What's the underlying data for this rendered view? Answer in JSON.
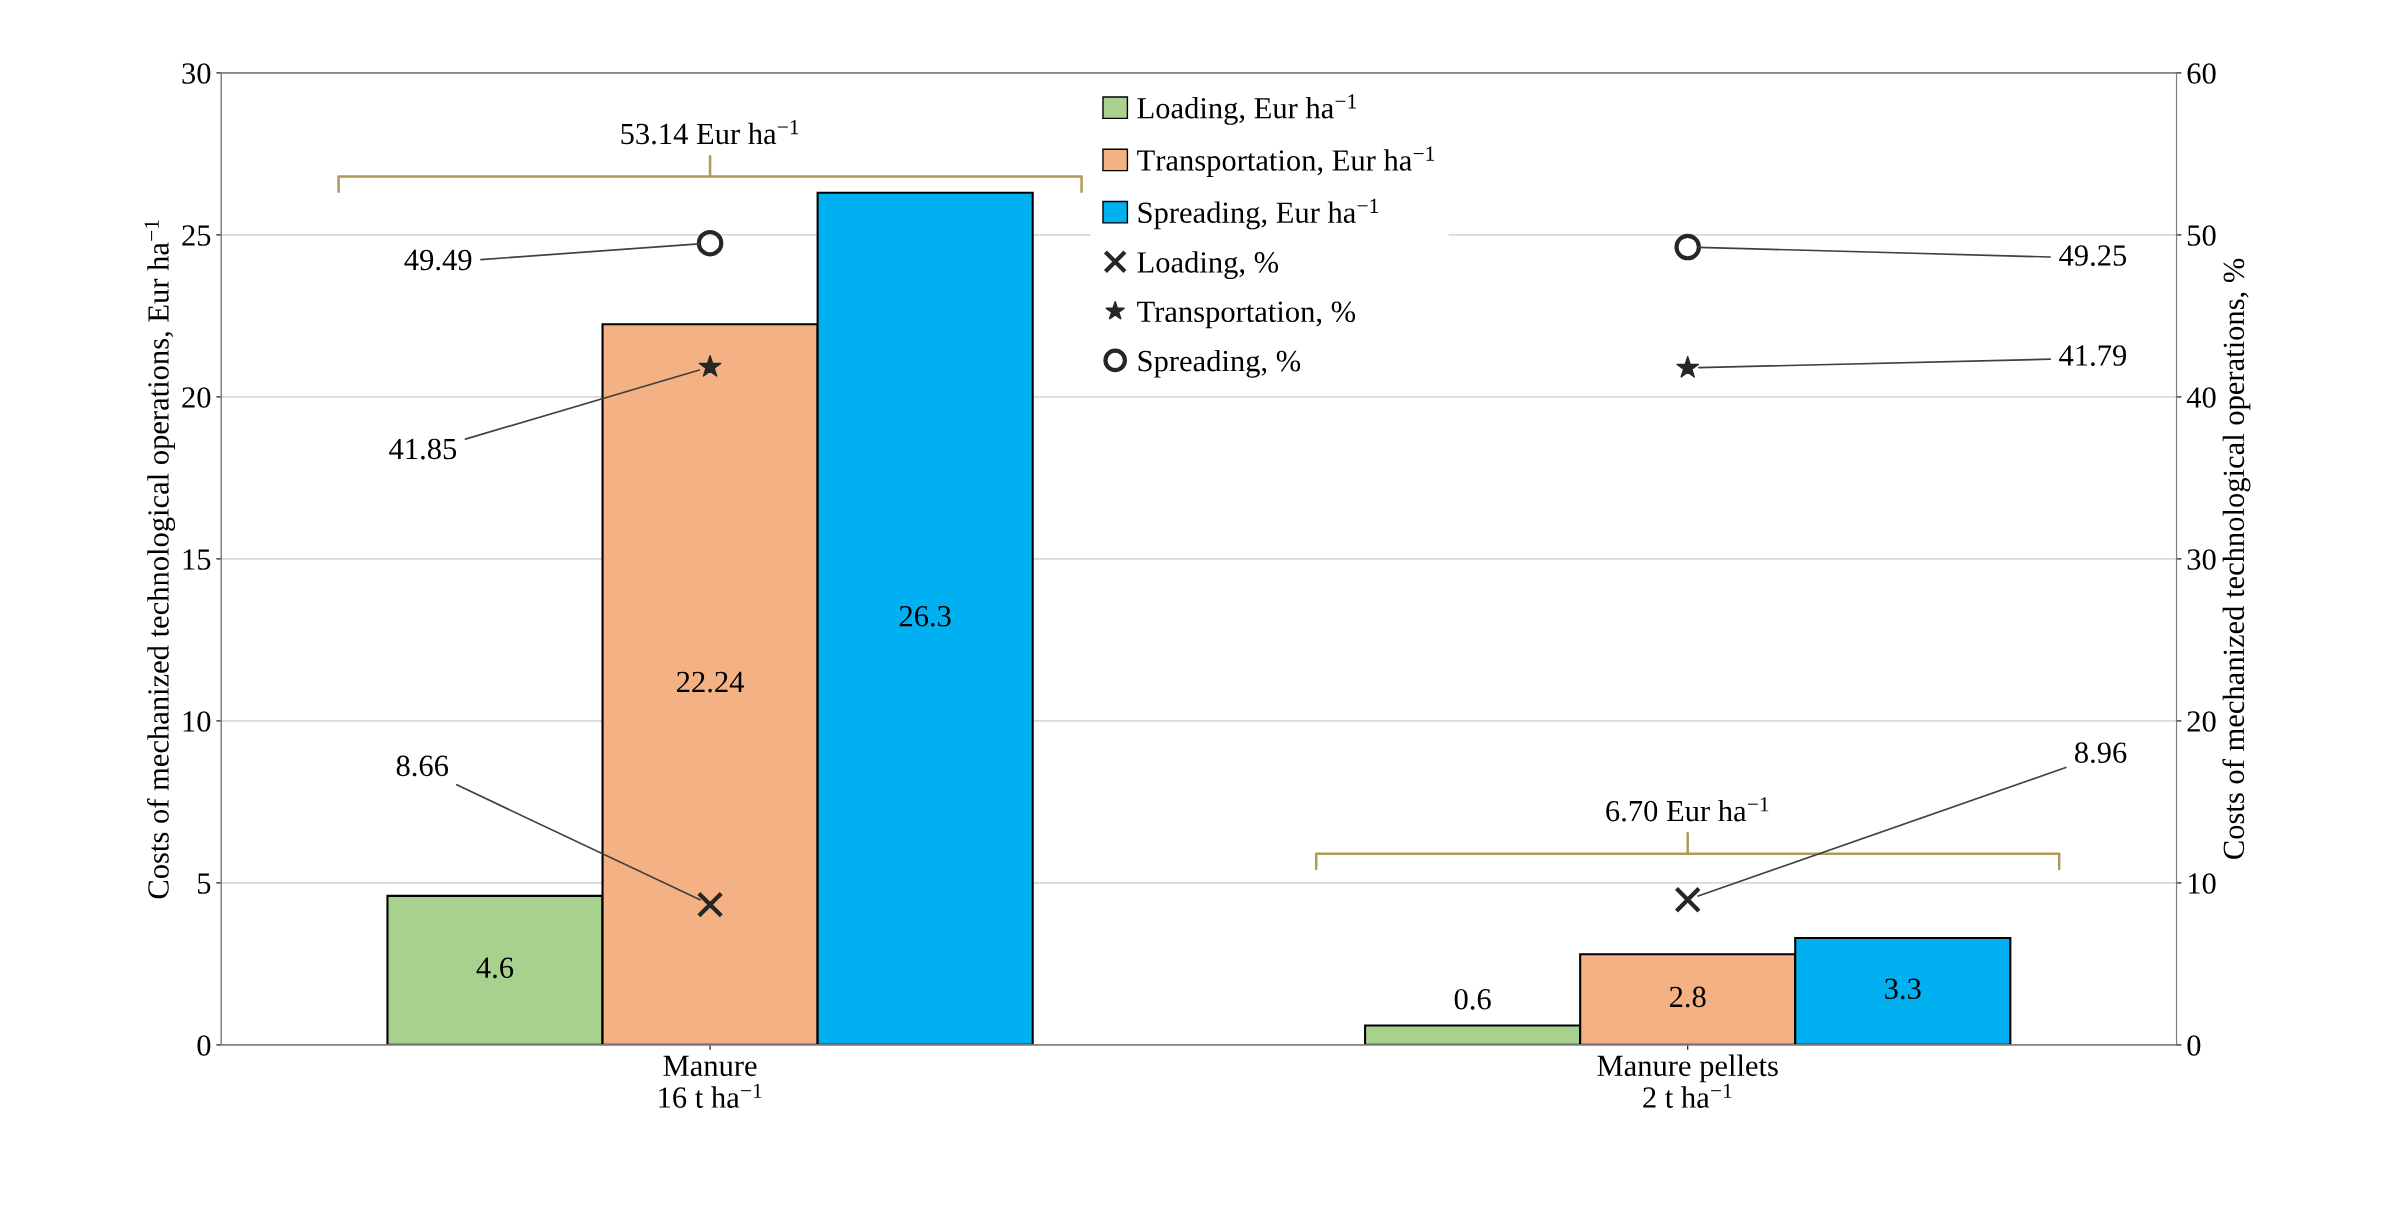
{
  "chart_data": {
    "type": "bar",
    "categories": [
      "Manure\n16 t ha$^{−1}$",
      "Manure pellets\n2 t ha$^{−1}$"
    ],
    "ylabel": "Costs of mechanized technological operations, Eur ha$^{−1}$",
    "y2label": "Costs of mechanized technological operations, %",
    "ylim": [
      0,
      30
    ],
    "yticks": [
      0,
      5,
      10,
      15,
      20,
      25,
      30
    ],
    "y2lim": [
      0,
      60
    ],
    "y2ticks": [
      0,
      10,
      20,
      30,
      40,
      50,
      60
    ],
    "grid": "y",
    "legend": "top",
    "annotations": [
      "53.14 Eur ha$^{−1}$",
      "6.70 Eur ha$^{−1}$"
    ],
    "series": [
      {
        "name": "Loading, Eur ha$^{−1}$",
        "color": "#a9d18e",
        "values": [
          4.6,
          0.6
        ],
        "value_labels": [
          "4.6",
          "0.6"
        ]
      },
      {
        "name": "Transportation, Eur ha$^{−1}$",
        "color": "#f4b183",
        "values": [
          22.24,
          2.8
        ],
        "value_labels": [
          "22.24",
          "2.8"
        ]
      },
      {
        "name": "Spreading, Eur ha$^{−1}$",
        "color": "#00b0f0",
        "values": [
          26.3,
          3.3
        ],
        "value_labels": [
          "26.3",
          "3.3"
        ]
      },
      {
        "name": "Loading, %",
        "type": "scatter",
        "axis": "y2",
        "marker": "cross",
        "color": "#262626",
        "x": [
          "Manure\n16 t ha$^{−1}$",
          "Manure pellets\n2 t ha$^{−1}$"
        ],
        "values": [
          8.66,
          8.96
        ],
        "value_labels": [
          "8.66",
          "8.96"
        ]
      },
      {
        "name": "Transportation, %",
        "type": "scatter",
        "axis": "y2",
        "marker": "star",
        "color": "#262626",
        "x": [
          "Manure\n16 t ha$^{−1}$",
          "Manure pellets\n2 t ha$^{−1}$"
        ],
        "values": [
          41.85,
          41.79
        ],
        "value_labels": [
          "41.85",
          "41.79"
        ]
      },
      {
        "name": "Spreading, %",
        "type": "scatter",
        "axis": "y2",
        "marker": "circle",
        "color": "#262626",
        "x": [
          "Manure\n16 t ha$^{−1}$",
          "Manure pellets\n2 t ha$^{−1}$"
        ],
        "values": [
          49.49,
          49.25
        ],
        "value_labels": [
          "49.49",
          "49.25"
        ]
      }
    ]
  }
}
